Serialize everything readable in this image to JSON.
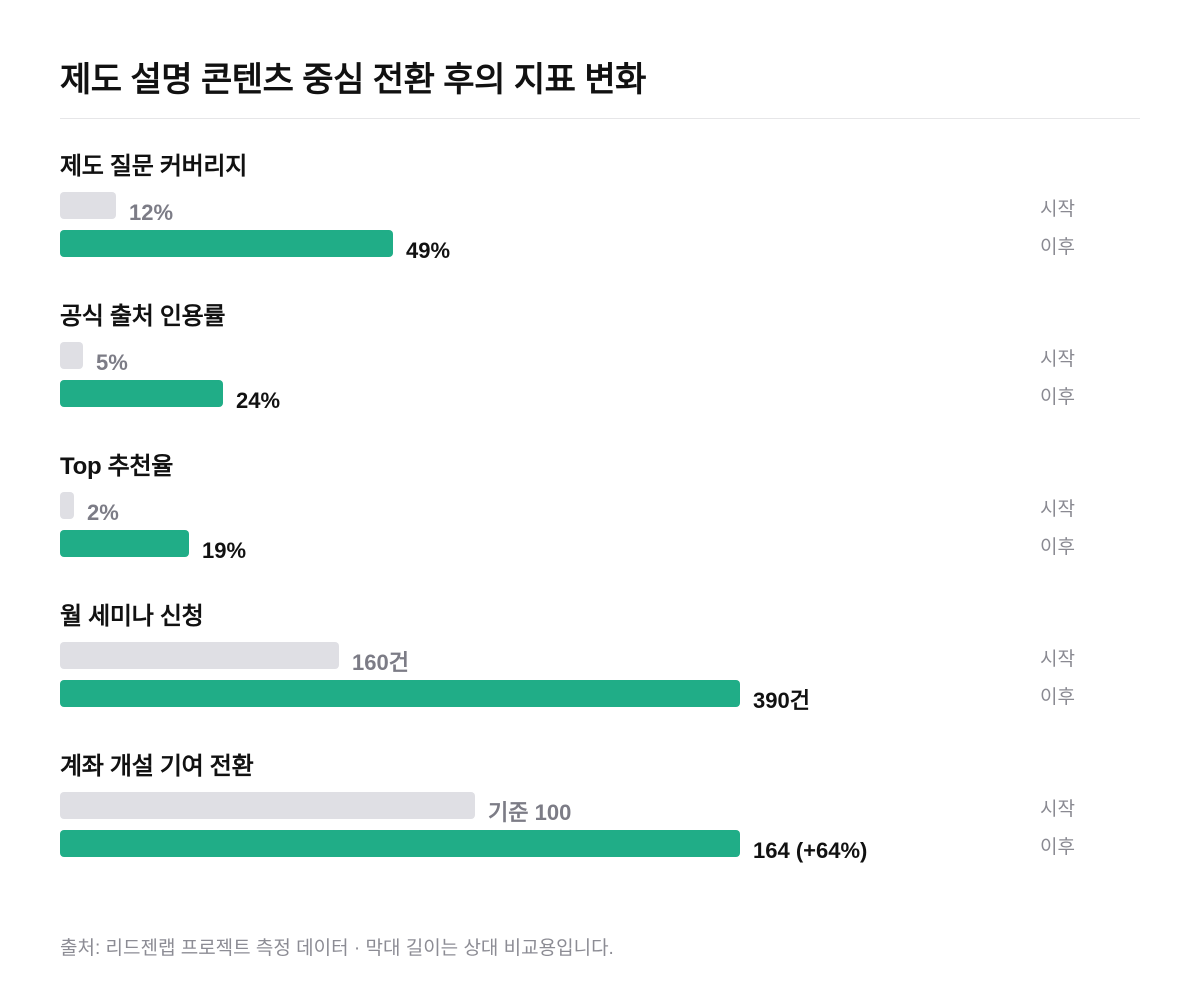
{
  "title": "제도 설명 콘텐츠 중심 전환 후의 지표 변화",
  "footnote": "출처: 리드젠랩 프로젝트 측정 데이터 · 막대 길이는 상대 비교용입니다.",
  "legend": {
    "before": "시작",
    "after": "이후"
  },
  "colors": {
    "before": "#dfdfe4",
    "after": "#20ad87"
  },
  "chart_data": {
    "type": "bar",
    "orientation": "horizontal",
    "title": "제도 설명 콘텐츠 중심 전환 후의 지표 변화",
    "series": [
      {
        "name": "시작"
      },
      {
        "name": "이후"
      }
    ],
    "groups": [
      {
        "label": "제도 질문 커버리지",
        "before": {
          "value": 12,
          "ratio": 0.082,
          "text": "12%"
        },
        "after": {
          "value": 49,
          "ratio": 0.49,
          "text": "49%"
        }
      },
      {
        "label": "공식 출처 인용률",
        "before": {
          "value": 5,
          "ratio": 0.034,
          "text": "5%"
        },
        "after": {
          "value": 24,
          "ratio": 0.24,
          "text": "24%"
        }
      },
      {
        "label": "Top 추천율",
        "before": {
          "value": 2,
          "ratio": 0.014,
          "text": "2%"
        },
        "after": {
          "value": 19,
          "ratio": 0.19,
          "text": "19%"
        }
      },
      {
        "label": "월 세미나 신청",
        "before": {
          "value": 160,
          "ratio": 0.41,
          "text": "160건"
        },
        "after": {
          "value": 390,
          "ratio": 1.0,
          "text": "390건"
        }
      },
      {
        "label": "계좌 개설 기여 전환",
        "before": {
          "value": 100,
          "ratio": 0.61,
          "text": "기준 100"
        },
        "after": {
          "value": 164,
          "ratio": 1.0,
          "text": "164 (+64%)"
        }
      }
    ]
  }
}
